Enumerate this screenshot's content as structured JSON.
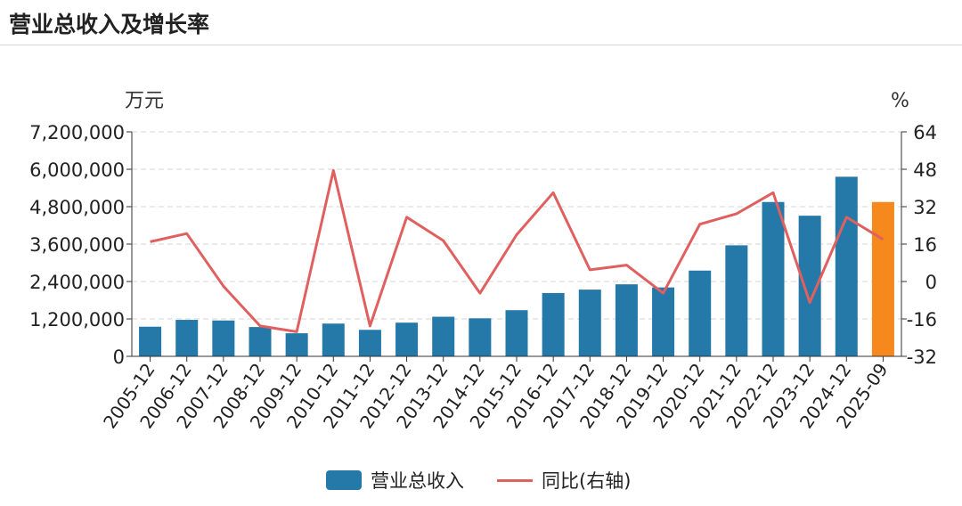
{
  "header": {
    "title": "营业总收入及增长率"
  },
  "chart_data": {
    "type": "bar",
    "categories": [
      "2005-12",
      "2006-12",
      "2007-12",
      "2008-12",
      "2009-12",
      "2010-12",
      "2011-12",
      "2012-12",
      "2013-12",
      "2014-12",
      "2015-12",
      "2016-12",
      "2017-12",
      "2018-12",
      "2019-12",
      "2020-12",
      "2021-12",
      "2022-12",
      "2023-12",
      "2024-12",
      "2025-09"
    ],
    "y_left_unit": "万元",
    "y_right_unit": "%",
    "y_left_ticks": [
      "7,200,000",
      "6,000,000",
      "4,800,000",
      "3,600,000",
      "2,400,000",
      "1,200,000",
      "0"
    ],
    "y_right_ticks": [
      "64",
      "48",
      "32",
      "16",
      "0",
      "-16",
      "-32"
    ],
    "ylim_left": [
      0,
      7200000
    ],
    "ylim_right": [
      -32,
      64
    ],
    "grid": true,
    "legend_position": "bottom",
    "series": [
      {
        "name": "营业总收入",
        "kind": "bar",
        "color": "#2479a8",
        "highlight_last_color": "#f5891e",
        "values": [
          950000,
          1170000,
          1150000,
          940000,
          740000,
          1050000,
          850000,
          1080000,
          1270000,
          1220000,
          1480000,
          2030000,
          2140000,
          2310000,
          2210000,
          2750000,
          3560000,
          4950000,
          4510000,
          5760000,
          4950000
        ]
      },
      {
        "name": "同比(右轴)",
        "kind": "line",
        "axis": "right",
        "color": "#e06060",
        "values": [
          17,
          20.5,
          -2,
          -19,
          -21.5,
          47.5,
          -19,
          27.5,
          17.5,
          -5,
          20,
          38,
          5,
          7,
          -5,
          24.5,
          29,
          38,
          -9,
          27.5,
          18
        ]
      }
    ]
  }
}
